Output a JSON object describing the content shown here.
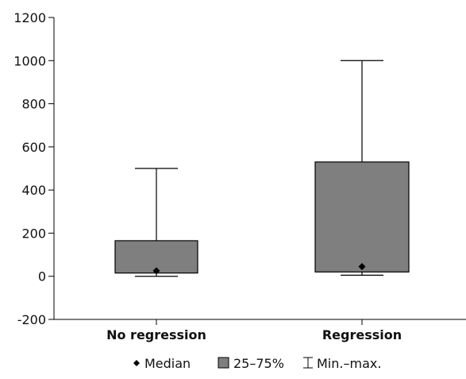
{
  "chart_data": {
    "type": "boxplot",
    "title": "",
    "xlabel": "",
    "ylabel": "",
    "ylim": [
      -200,
      1200
    ],
    "yticks": [
      -200,
      0,
      200,
      400,
      600,
      800,
      1000,
      1200
    ],
    "grid": false,
    "categories": [
      "No regression",
      "Regression"
    ],
    "boxes": [
      {
        "category": "No regression",
        "min": 0,
        "q1": 15,
        "median": 25,
        "q3": 165,
        "max": 500
      },
      {
        "category": "Regression",
        "min": 5,
        "q1": 20,
        "median": 45,
        "q3": 530,
        "max": 1000
      }
    ],
    "legend": {
      "position": "bottom",
      "entries": [
        {
          "symbol": "diamond-icon",
          "label": "Median"
        },
        {
          "symbol": "box-icon",
          "label": "25–75%"
        },
        {
          "symbol": "whisker-icon",
          "label": "Min.–max."
        }
      ]
    },
    "colors": {
      "box_fill": "#7f7f7f",
      "line": "#000000"
    }
  }
}
